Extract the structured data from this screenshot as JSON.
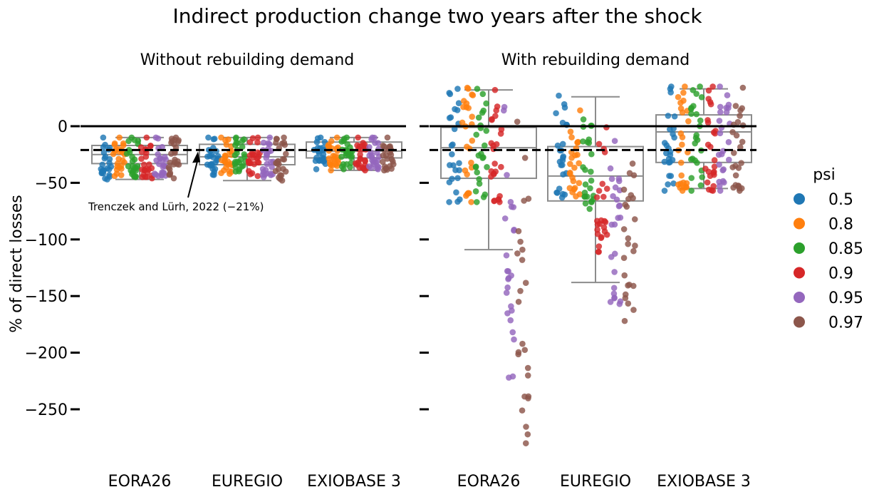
{
  "chart_data": {
    "type": "strip-box",
    "title": "Indirect production change two years after the shock",
    "ylabel": "% of direct losses",
    "ylim": [
      -290,
      45
    ],
    "yticks": [
      0,
      -50,
      -100,
      -150,
      -200,
      -250
    ],
    "ytick_labels": [
      "0",
      "−50",
      "−100",
      "−150",
      "−200",
      "−250"
    ],
    "categories": [
      "EORA26",
      "EUREGIO",
      "EXIOBASE 3"
    ],
    "reference_lines": {
      "zero": 0,
      "literature": -21
    },
    "annotation": {
      "text": "Trenczek and Lürh, 2022 (−21%)",
      "target_x": "EUREGIO",
      "target_y": -21
    },
    "legend": {
      "title": "psi",
      "placement": "right",
      "entries": [
        {
          "label": "0.5",
          "color": "#1f77b4"
        },
        {
          "label": "0.8",
          "color": "#ff7f0e"
        },
        {
          "label": "0.85",
          "color": "#2ca02c"
        },
        {
          "label": "0.9",
          "color": "#d62728"
        },
        {
          "label": "0.95",
          "color": "#9467bd"
        },
        {
          "label": "0.97",
          "color": "#8c564b"
        }
      ]
    },
    "panels": [
      {
        "title": "Without rebuilding demand",
        "boxes": [
          {
            "category": "EORA26",
            "whisker_low": -47,
            "q1": -33,
            "median": -25,
            "q3": -17,
            "whisker_high": -10
          },
          {
            "category": "EUREGIO",
            "whisker_low": -48,
            "q1": -34,
            "median": -27,
            "q3": -16,
            "whisker_high": -10
          },
          {
            "category": "EXIOBASE 3",
            "whisker_low": -39,
            "q1": -28,
            "median": -22,
            "q3": -14,
            "whisker_high": -10
          }
        ],
        "series": [
          {
            "name": "0.5",
            "ranges": [
              [
                -47,
                -10
              ],
              [
                -43,
                -10
              ],
              [
                -38,
                -10
              ]
            ],
            "count": 25
          },
          {
            "name": "0.8",
            "ranges": [
              [
                -44,
                -10
              ],
              [
                -42,
                -10
              ],
              [
                -39,
                -10
              ]
            ],
            "count": 25
          },
          {
            "name": "0.85",
            "ranges": [
              [
                -45,
                -10
              ],
              [
                -40,
                -10
              ],
              [
                -38,
                -10
              ]
            ],
            "count": 25
          },
          {
            "name": "0.9",
            "ranges": [
              [
                -46,
                -10
              ],
              [
                -44,
                -10
              ],
              [
                -39,
                -10
              ]
            ],
            "count": 25
          },
          {
            "name": "0.95",
            "ranges": [
              [
                -44,
                -10
              ],
              [
                -45,
                -10
              ],
              [
                -38,
                -10
              ]
            ],
            "count": 25
          },
          {
            "name": "0.97",
            "ranges": [
              [
                -46,
                -10
              ],
              [
                -48,
                -10
              ],
              [
                -39,
                -10
              ]
            ],
            "count": 25
          }
        ]
      },
      {
        "title": "With rebuilding demand",
        "boxes": [
          {
            "category": "EORA26",
            "whisker_low": -109,
            "q1": -46,
            "median": -19,
            "q3": -1,
            "whisker_high": 32
          },
          {
            "category": "EUREGIO",
            "whisker_low": -138,
            "q1": -66,
            "median": -44,
            "q3": -18,
            "whisker_high": 26
          },
          {
            "category": "EXIOBASE 3",
            "whisker_low": -55,
            "q1": -32,
            "median": -5,
            "q3": 10,
            "whisker_high": 33
          }
        ],
        "series": [
          {
            "name": "0.5",
            "ranges": [
              [
                -67,
                33
              ],
              [
                -63,
                27
              ],
              [
                -57,
                35
              ]
            ],
            "count": 25
          },
          {
            "name": "0.8",
            "ranges": [
              [
                -67,
                34
              ],
              [
                -62,
                14
              ],
              [
                -57,
                35
              ]
            ],
            "count": 25
          },
          {
            "name": "0.85",
            "ranges": [
              [
                -67,
                33
              ],
              [
                -73,
                6
              ],
              [
                -57,
                35
              ]
            ],
            "count": 25
          },
          {
            "name": "0.9",
            "ranges": [
              [
                -67,
                32
              ],
              [
                -111,
                -1
              ],
              [
                -57,
                35
              ]
            ],
            "count": 25
          },
          {
            "name": "0.95",
            "ranges": [
              [
                -222,
                17
              ],
              [
                -157,
                -13
              ],
              [
                -57,
                35
              ]
            ],
            "count": 25
          },
          {
            "name": "0.97",
            "ranges": [
              [
                -280,
                4
              ],
              [
                -172,
                -33
              ],
              [
                -57,
                34
              ]
            ],
            "count": 25
          }
        ]
      }
    ]
  }
}
